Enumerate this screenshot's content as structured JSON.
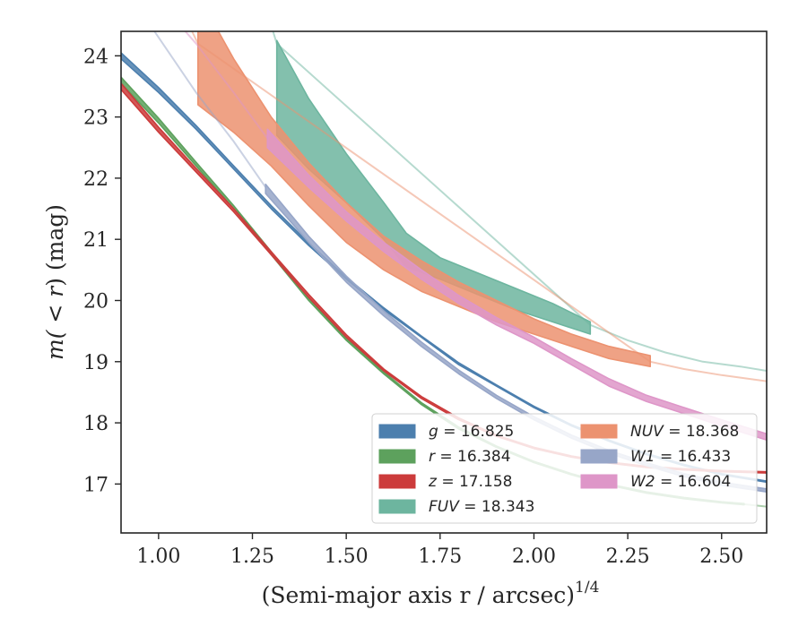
{
  "chart_data": {
    "type": "line",
    "xlabel": "(Semi-major axis r / arcsec)",
    "xlabel_exp": "1/4",
    "ylabel_pre": "m(",
    "ylabel_mid": " < ",
    "ylabel_r": "r",
    "ylabel_post": ") (mag)",
    "xlim": [
      0.9,
      2.62
    ],
    "ylim": [
      24.4,
      16.2
    ],
    "y_inverted": true,
    "x_ticks": [
      1.0,
      1.25,
      1.5,
      1.75,
      2.0,
      2.25,
      2.5
    ],
    "x_tick_labels": [
      "1.00",
      "1.25",
      "1.50",
      "1.75",
      "2.00",
      "2.25",
      "2.50"
    ],
    "y_ticks": [
      17,
      18,
      19,
      20,
      21,
      22,
      23,
      24
    ],
    "y_tick_labels": [
      "17",
      "18",
      "19",
      "20",
      "21",
      "22",
      "23",
      "24"
    ],
    "grid": false,
    "legend_position": "lower-right",
    "series": [
      {
        "name": "g",
        "label_value": "16.825",
        "color": "#4c7fae",
        "band_x": [
          0.9,
          1.0,
          1.1,
          1.2,
          1.3,
          1.4,
          1.5,
          1.6,
          1.7,
          1.8,
          1.9,
          2.0,
          2.1,
          2.2,
          2.3,
          2.4,
          2.5,
          2.62
        ],
        "band_upper": [
          23.95,
          23.4,
          22.8,
          22.15,
          21.5,
          20.9,
          20.35,
          19.85,
          19.4,
          18.95,
          18.6,
          18.25,
          17.95,
          17.7,
          17.48,
          17.3,
          17.15,
          17.03
        ],
        "band_lower": [
          24.05,
          23.48,
          22.86,
          22.2,
          21.55,
          20.94,
          20.38,
          19.88,
          19.42,
          18.98,
          18.62,
          18.27,
          17.97,
          17.72,
          17.5,
          17.32,
          17.17,
          17.05
        ],
        "ext_x": [],
        "ext_y": []
      },
      {
        "name": "r",
        "label_value": "16.384",
        "color": "#5da15d",
        "band_x": [
          0.9,
          1.0,
          1.1,
          1.2,
          1.3,
          1.4,
          1.5,
          1.6,
          1.7,
          1.8,
          1.9,
          2.0,
          2.1,
          2.2,
          2.3,
          2.4,
          2.5,
          2.56
        ],
        "band_upper": [
          23.55,
          22.9,
          22.2,
          21.5,
          20.75,
          20.0,
          19.35,
          18.8,
          18.3,
          17.9,
          17.6,
          17.35,
          17.15,
          16.98,
          16.85,
          16.76,
          16.69,
          16.66
        ],
        "band_lower": [
          23.65,
          22.98,
          22.26,
          21.55,
          20.8,
          20.04,
          19.38,
          18.83,
          18.33,
          17.93,
          17.62,
          17.37,
          17.17,
          17.0,
          16.87,
          16.78,
          16.71,
          16.68
        ],
        "ext_x": [
          2.56,
          2.62
        ],
        "ext_y": [
          16.67,
          16.63
        ]
      },
      {
        "name": "z",
        "label_value": "17.158",
        "color": "#cc3b3b",
        "band_x": [
          0.9,
          1.0,
          1.1,
          1.2,
          1.3,
          1.4,
          1.5,
          1.6,
          1.7,
          1.8,
          1.9,
          2.0,
          2.1,
          2.2,
          2.3,
          2.4,
          2.5,
          2.62
        ],
        "band_upper": [
          23.45,
          22.75,
          22.1,
          21.45,
          20.75,
          20.05,
          19.4,
          18.85,
          18.4,
          18.05,
          17.78,
          17.58,
          17.44,
          17.34,
          17.27,
          17.23,
          17.2,
          17.18
        ],
        "band_lower": [
          23.55,
          22.83,
          22.16,
          21.5,
          20.8,
          20.1,
          19.44,
          18.88,
          18.43,
          18.08,
          17.8,
          17.6,
          17.46,
          17.36,
          17.29,
          17.25,
          17.22,
          17.2
        ],
        "ext_x": [],
        "ext_y": []
      },
      {
        "name": "FUV",
        "label_value": "18.343",
        "color": "#6db59f",
        "band_x": [
          1.315,
          1.4,
          1.5,
          1.6,
          1.66,
          1.75,
          1.85,
          1.95,
          2.05,
          2.15
        ],
        "band_upper": [
          22.7,
          22.15,
          21.6,
          21.0,
          20.55,
          20.35,
          20.1,
          19.85,
          19.65,
          19.45
        ],
        "band_lower": [
          24.25,
          23.3,
          22.4,
          21.6,
          21.1,
          20.7,
          20.45,
          20.2,
          19.95,
          19.65
        ],
        "ext_x": [
          1.2,
          1.25,
          1.3,
          1.315,
          2.15,
          2.25,
          2.35,
          2.45,
          2.55,
          2.62
        ],
        "ext_y": [
          26.3,
          25.4,
          24.5,
          24.2,
          19.6,
          19.35,
          19.15,
          19.0,
          18.92,
          18.85
        ]
      },
      {
        "name": "NUV",
        "label_value": "18.368",
        "color": "#ec9270",
        "band_x": [
          1.105,
          1.2,
          1.3,
          1.4,
          1.5,
          1.6,
          1.7,
          1.8,
          1.9,
          2.0,
          2.1,
          2.2,
          2.31
        ],
        "band_upper": [
          23.2,
          22.75,
          22.2,
          21.55,
          20.95,
          20.5,
          20.15,
          19.9,
          19.65,
          19.45,
          19.25,
          19.05,
          18.92
        ],
        "band_lower": [
          25.0,
          23.95,
          23.0,
          22.25,
          21.6,
          21.05,
          20.65,
          20.3,
          20.0,
          19.7,
          19.45,
          19.25,
          19.1
        ],
        "ext_x": [
          1.0,
          1.05,
          1.105,
          2.31,
          2.4,
          2.5,
          2.62
        ],
        "ext_y": [
          25.6,
          24.9,
          24.2,
          19.0,
          18.88,
          18.78,
          18.68
        ]
      },
      {
        "name": "W1",
        "label_value": "16.433",
        "color": "#97a6c8",
        "band_x": [
          1.285,
          1.35,
          1.4,
          1.5,
          1.6,
          1.7,
          1.8,
          1.9,
          2.0,
          2.1,
          2.2,
          2.3,
          2.4,
          2.5,
          2.62
        ],
        "band_upper": [
          21.75,
          21.3,
          20.95,
          20.3,
          19.75,
          19.25,
          18.8,
          18.4,
          18.05,
          17.75,
          17.5,
          17.3,
          17.12,
          16.98,
          16.87
        ],
        "band_lower": [
          21.9,
          21.42,
          21.05,
          20.4,
          19.83,
          19.32,
          18.86,
          18.45,
          18.1,
          17.8,
          17.55,
          17.35,
          17.17,
          17.03,
          16.92
        ],
        "ext_x": [
          0.9,
          1.0,
          1.1,
          1.2,
          1.285
        ],
        "ext_y": [
          25.2,
          24.3,
          23.4,
          22.6,
          21.85
        ]
      },
      {
        "name": "W2",
        "label_value": "16.604",
        "color": "#de96c8",
        "band_x": [
          1.29,
          1.4,
          1.5,
          1.6,
          1.7,
          1.8,
          1.9,
          2.0,
          2.1,
          2.2,
          2.3,
          2.4,
          2.5,
          2.62
        ],
        "band_upper": [
          22.5,
          21.85,
          21.3,
          20.8,
          20.35,
          19.95,
          19.6,
          19.3,
          18.95,
          18.6,
          18.35,
          18.15,
          17.95,
          17.72
        ],
        "band_lower": [
          22.8,
          22.05,
          21.45,
          20.95,
          20.5,
          20.08,
          19.72,
          19.4,
          19.05,
          18.72,
          18.45,
          18.25,
          18.05,
          17.82
        ],
        "ext_x": [
          1.0,
          1.1,
          1.2,
          1.29
        ],
        "ext_y": [
          24.9,
          24.2,
          23.4,
          22.65
        ]
      }
    ]
  }
}
